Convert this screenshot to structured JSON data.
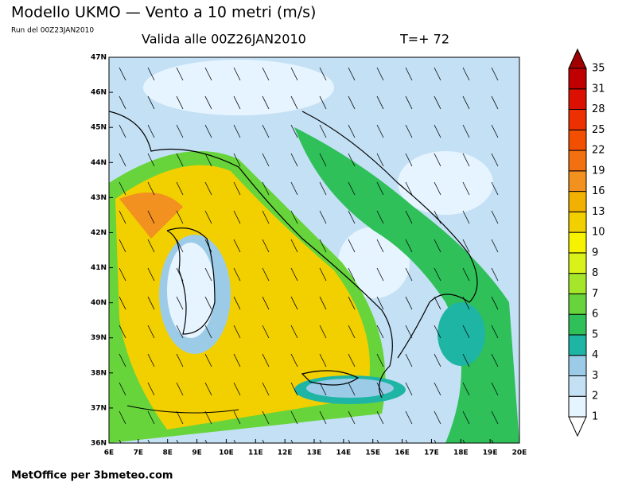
{
  "header": {
    "title": "Modello UKMO — Vento a 10 metri (m/s)",
    "run": "Run del 00Z23JAN2010",
    "valid": "Valida alle 00Z26JAN2010",
    "forecast": "T=+ 72"
  },
  "map": {
    "lon_labels": [
      "6E",
      "7E",
      "8E",
      "9E",
      "10E",
      "11E",
      "12E",
      "13E",
      "14E",
      "15E",
      "16E",
      "17E",
      "18E",
      "19E",
      "20E"
    ],
    "lat_labels": [
      "47N",
      "46N",
      "45N",
      "44N",
      "43N",
      "42N",
      "41N",
      "40N",
      "39N",
      "38N",
      "37N",
      "36N"
    ]
  },
  "legend": {
    "levels": [
      1,
      2,
      3,
      4,
      5,
      6,
      7,
      8,
      9,
      10,
      13,
      16,
      19,
      22,
      25,
      28,
      31,
      35
    ],
    "colors": [
      "#e6f4ff",
      "#c4e0f4",
      "#9ccbe8",
      "#1fb5a5",
      "#2fc05a",
      "#66d43a",
      "#a6e62a",
      "#d8f21a",
      "#f6f200",
      "#f2d000",
      "#f2b000",
      "#f29020",
      "#f27010",
      "#f25000",
      "#ee3000",
      "#dc1000",
      "#c00000"
    ]
  },
  "footer": "MetOffice per 3bmeteo.com"
}
